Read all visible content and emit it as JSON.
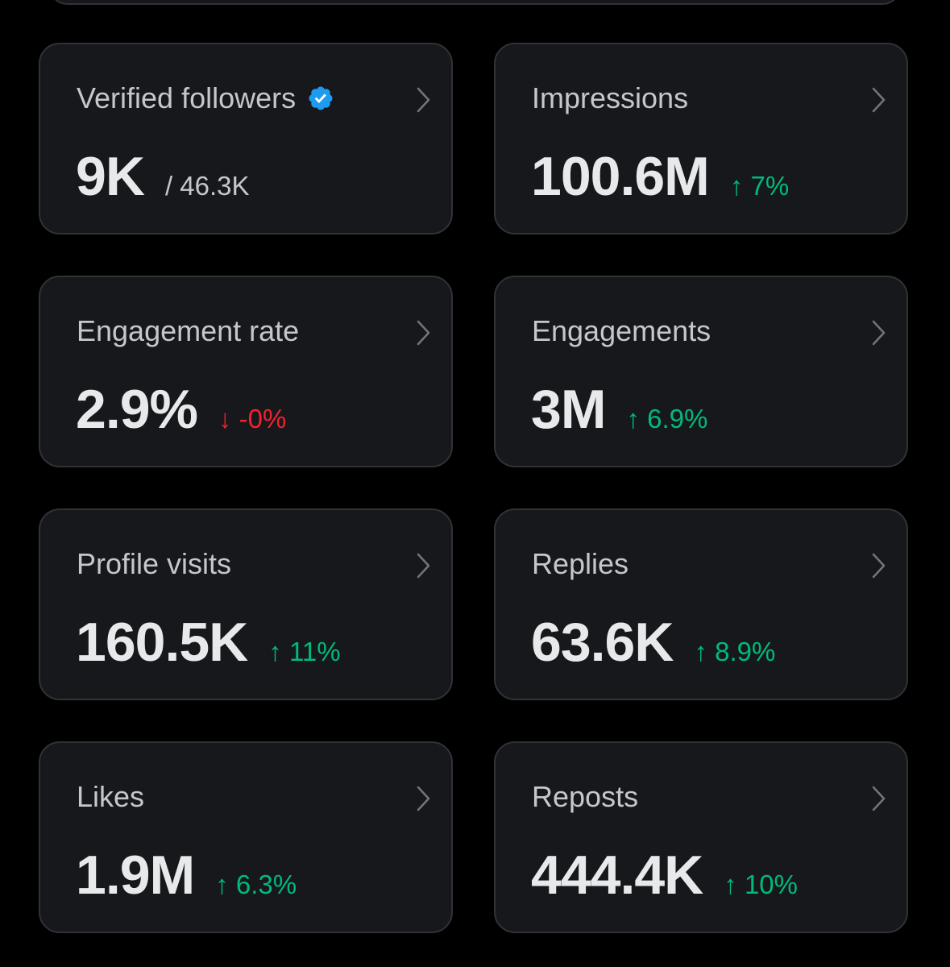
{
  "cards": [
    {
      "label": "Verified followers",
      "value": "9K",
      "total": "/ 46.3K"
    },
    {
      "label": "Impressions",
      "value": "100.6M",
      "change": "↑ 7%",
      "color": "#00ba7c"
    },
    {
      "label": "Engagement rate",
      "value": "2.9%",
      "change": "↓ -0%",
      "color": "#f4212e"
    },
    {
      "label": "Engagements",
      "value": "3M",
      "change": "↑ 6.9%",
      "color": "#00ba7c"
    },
    {
      "label": "Profile visits",
      "value": "160.5K",
      "change": "↑ 11%",
      "color": "#00ba7c"
    },
    {
      "label": "Replies",
      "value": "63.6K",
      "change": "↑ 8.9%",
      "color": "#00ba7c"
    },
    {
      "label": "Likes",
      "value": "1.9M",
      "change": "↑ 6.3%",
      "color": "#00ba7c"
    },
    {
      "label": "Reposts",
      "value": "444.4K",
      "change": "↑ 10%",
      "color": "#00ba7c"
    }
  ]
}
